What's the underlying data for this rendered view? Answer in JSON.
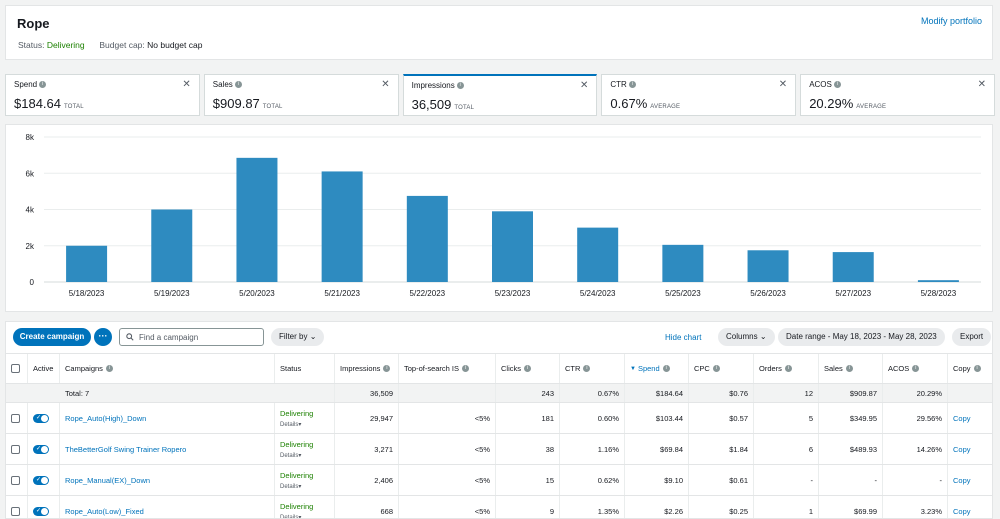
{
  "header": {
    "title": "Rope",
    "modify_label": "Modify portfolio",
    "status_label": "Status:",
    "status_value": "Delivering",
    "budget_label": "Budget cap:",
    "budget_value": "No budget cap"
  },
  "metrics": [
    {
      "label": "Spend",
      "value": "$184.64",
      "sub": "TOTAL",
      "selected": false
    },
    {
      "label": "Sales",
      "value": "$909.87",
      "sub": "TOTAL",
      "selected": false
    },
    {
      "label": "Impressions",
      "value": "36,509",
      "sub": "TOTAL",
      "selected": true
    },
    {
      "label": "CTR",
      "value": "0.67%",
      "sub": "AVERAGE",
      "selected": false
    },
    {
      "label": "ACOS",
      "value": "20.29%",
      "sub": "AVERAGE",
      "selected": false
    }
  ],
  "chart_data": {
    "type": "bar",
    "categories": [
      "5/18/2023",
      "5/19/2023",
      "5/20/2023",
      "5/21/2023",
      "5/22/2023",
      "5/23/2023",
      "5/24/2023",
      "5/25/2023",
      "5/26/2023",
      "5/27/2023",
      "5/28/2023"
    ],
    "values": [
      2000,
      4000,
      6850,
      6100,
      4750,
      3900,
      3000,
      2050,
      1750,
      1650,
      100
    ],
    "ylim": [
      0,
      8000
    ],
    "yticks": [
      0,
      2000,
      4000,
      6000,
      8000
    ],
    "ytick_labels": [
      "0",
      "2k",
      "4k",
      "6k",
      "8k"
    ],
    "grid": true,
    "bar_color": "#2e8bc0"
  },
  "toolbar": {
    "create_label": "Create campaign",
    "more_label": "···",
    "search_placeholder": "Find a campaign",
    "filter_label": "Filter by",
    "hide_chart_label": "Hide chart",
    "columns_label": "Columns",
    "date_range_label": "Date range - May 18, 2023 - May 28, 2023",
    "export_label": "Export"
  },
  "table": {
    "headers": {
      "active": "Active",
      "campaigns": "Campaigns",
      "status": "Status",
      "impressions": "Impressions",
      "top_of_search": "Top-of-search IS",
      "clicks": "Clicks",
      "ctr": "CTR",
      "spend": "Spend",
      "cpc": "CPC",
      "orders": "Orders",
      "sales": "Sales",
      "acos": "ACOS",
      "copy": "Copy"
    },
    "total": {
      "label": "Total: 7",
      "impressions": "36,509",
      "clicks": "243",
      "ctr": "0.67%",
      "spend": "$184.64",
      "cpc": "$0.76",
      "orders": "12",
      "sales": "$909.87",
      "acos": "20.29%"
    },
    "rows": [
      {
        "campaign": "Rope_Auto(High)_Down",
        "status": "Delivering",
        "details": "Details",
        "impressions": "29,947",
        "top": "<5%",
        "clicks": "181",
        "ctr": "0.60%",
        "spend": "$103.44",
        "cpc": "$0.57",
        "orders": "5",
        "sales": "$349.95",
        "acos": "29.56%",
        "copy": "Copy"
      },
      {
        "campaign": "TheBetterGolf Swing Trainer Ropero",
        "status": "Delivering",
        "details": "Details",
        "impressions": "3,271",
        "top": "<5%",
        "clicks": "38",
        "ctr": "1.16%",
        "spend": "$69.84",
        "cpc": "$1.84",
        "orders": "6",
        "sales": "$489.93",
        "acos": "14.26%",
        "copy": "Copy"
      },
      {
        "campaign": "Rope_Manual(EX)_Down",
        "status": "Delivering",
        "details": "Details",
        "impressions": "2,406",
        "top": "<5%",
        "clicks": "15",
        "ctr": "0.62%",
        "spend": "$9.10",
        "cpc": "$0.61",
        "orders": "-",
        "sales": "-",
        "acos": "-",
        "copy": "Copy"
      },
      {
        "campaign": "Rope_Auto(Low)_Fixed",
        "status": "Delivering",
        "details": "Details",
        "impressions": "668",
        "top": "<5%",
        "clicks": "9",
        "ctr": "1.35%",
        "spend": "$2.26",
        "cpc": "$0.25",
        "orders": "1",
        "sales": "$69.99",
        "acos": "3.23%",
        "copy": "Copy"
      }
    ]
  }
}
